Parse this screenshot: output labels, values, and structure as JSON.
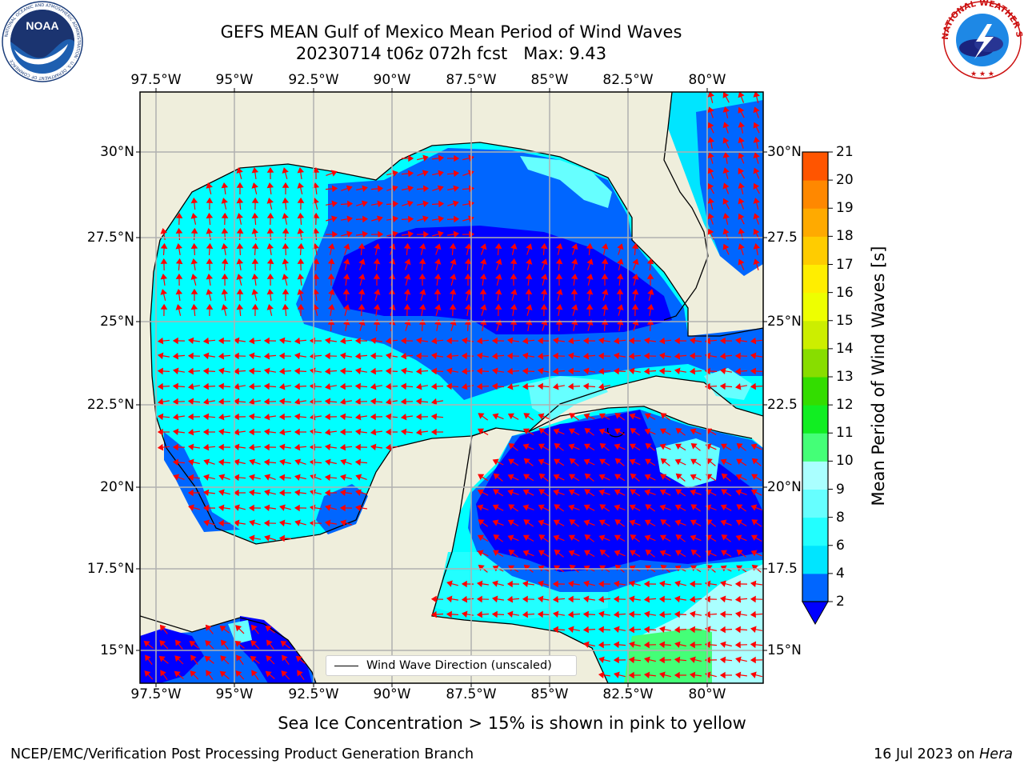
{
  "title": {
    "line1": "GEFS MEAN Gulf of Mexico Mean Period of Wind Waves",
    "line2": "20230714 t06z 072h fcst   Max: 9.43"
  },
  "map": {
    "lon_labels": [
      "97.5°W",
      "95°W",
      "92.5°W",
      "90°W",
      "87.5°W",
      "85°W",
      "82.5°W",
      "80°W"
    ],
    "lat_labels_left": [
      "30°N",
      "27.5°N",
      "25°N",
      "22.5°N",
      "20°N",
      "17.5°N",
      "15°N"
    ],
    "lat_labels_right": [
      "30°N",
      "27.5",
      "25°N",
      "22.5",
      "20°N",
      "17.5",
      "15°N"
    ],
    "extent": {
      "lon_min": -98.0,
      "lon_max": -78.2,
      "lat_min": 14.0,
      "lat_max": 31.7
    },
    "ocean_color": "#00ffff",
    "land_color": "#efeedc",
    "arrow_color": "#ff0000",
    "grid_color": "#b0b0b0",
    "legend_label": "Wind Wave Direction (unscaled)"
  },
  "colorbar": {
    "title": "Mean Period of Wind Waves [s]",
    "tick_labels": [
      "2",
      "4",
      "6",
      "8",
      "9",
      "10",
      "11",
      "12",
      "13",
      "14",
      "15",
      "16",
      "17",
      "18",
      "19",
      "20",
      "21"
    ],
    "colors": [
      "#0066ff",
      "#00e5ff",
      "#22ffff",
      "#66ffff",
      "#aaffff",
      "#44ff77",
      "#11ee22",
      "#33dd00",
      "#88dd00",
      "#ccee00",
      "#eeff00",
      "#ffee00",
      "#ffcc00",
      "#ffaa00",
      "#ff8800",
      "#ff5500",
      "#ff2200",
      "#ff0000"
    ],
    "under_color": "#0000ff"
  },
  "note": "Sea Ice Concentration > 15% is shown in pink to yellow",
  "footer": {
    "left": "NCEP/EMC/Verification Post Processing Product Generation Branch",
    "right_prefix": "16 Jul 2023 on ",
    "right_machine": "Hera"
  },
  "logos": {
    "noaa_text": "NOAA",
    "noaa_ring": "NATIONAL OCEANIC AND ATMOSPHERIC ADMINISTRATION · U.S. DEPARTMENT OF COMMERCE",
    "nws_ring": "NATIONAL WEATHER SERVICE"
  }
}
